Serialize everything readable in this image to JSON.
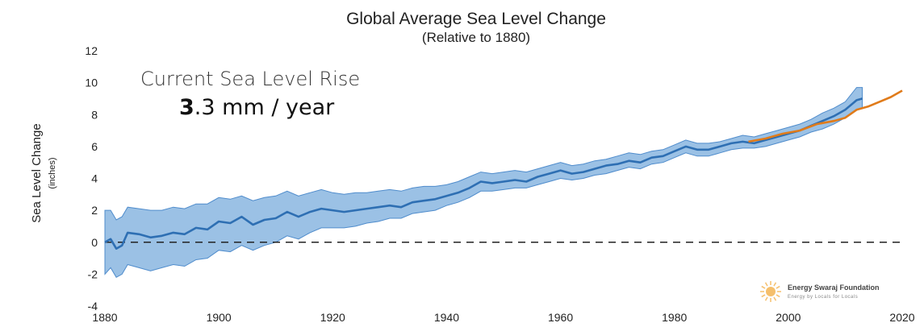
{
  "chart_data": {
    "type": "line",
    "title": "Global Average Sea Level Change",
    "subtitle": "(Relative to 1880)",
    "ylabel": "Sea Level Change",
    "ylabel_unit": "(inches)",
    "xlabel": "",
    "xlim": [
      1880,
      2020
    ],
    "ylim": [
      -4,
      12
    ],
    "x_ticks": [
      "1880",
      "1900",
      "1920",
      "1940",
      "1960",
      "1980",
      "2000",
      "2020"
    ],
    "y_ticks": [
      "12",
      "10",
      "8",
      "6",
      "4",
      "2",
      "0",
      "-2",
      "-4"
    ],
    "reference_line": {
      "y": 0,
      "style": "dashed"
    },
    "annotation": {
      "line1": "Current Sea Level Rise",
      "value_bold": "3",
      "value_rest": ".3 mm / year"
    },
    "series": [
      {
        "color": "#2e6fb3",
        "band_color": "#8ab6e0",
        "x": [
          1880,
          1881,
          1882,
          1883,
          1884,
          1886,
          1888,
          1890,
          1892,
          1894,
          1896,
          1898,
          1900,
          1902,
          1904,
          1906,
          1908,
          1910,
          1912,
          1914,
          1916,
          1918,
          1920,
          1922,
          1924,
          1926,
          1928,
          1930,
          1932,
          1934,
          1936,
          1938,
          1940,
          1942,
          1944,
          1946,
          1948,
          1950,
          1952,
          1954,
          1956,
          1958,
          1960,
          1962,
          1964,
          1966,
          1968,
          1970,
          1972,
          1974,
          1976,
          1978,
          1980,
          1982,
          1984,
          1986,
          1988,
          1990,
          1992,
          1994,
          1996,
          1998,
          2000,
          2002,
          2004,
          2006,
          2008,
          2010,
          2012,
          2013
        ],
        "values": [
          0,
          0.2,
          -0.4,
          -0.2,
          0.6,
          0.5,
          0.3,
          0.4,
          0.6,
          0.5,
          0.9,
          0.8,
          1.3,
          1.2,
          1.6,
          1.1,
          1.4,
          1.5,
          1.9,
          1.6,
          1.9,
          2.1,
          2.0,
          1.9,
          2.0,
          2.1,
          2.2,
          2.3,
          2.2,
          2.5,
          2.6,
          2.7,
          2.9,
          3.1,
          3.4,
          3.8,
          3.7,
          3.8,
          3.9,
          3.8,
          4.1,
          4.3,
          4.5,
          4.3,
          4.4,
          4.6,
          4.8,
          4.9,
          5.1,
          5.0,
          5.3,
          5.4,
          5.7,
          6.0,
          5.8,
          5.8,
          6.0,
          6.2,
          6.3,
          6.2,
          6.4,
          6.6,
          6.8,
          7.0,
          7.3,
          7.6,
          7.9,
          8.3,
          8.9,
          9.0
        ],
        "lower": [
          -2,
          -1.6,
          -2.2,
          -2.0,
          -1.4,
          -1.6,
          -1.8,
          -1.6,
          -1.4,
          -1.5,
          -1.1,
          -1.0,
          -0.5,
          -0.6,
          -0.2,
          -0.5,
          -0.2,
          0.0,
          0.4,
          0.2,
          0.6,
          0.9,
          0.9,
          0.9,
          1.0,
          1.2,
          1.3,
          1.5,
          1.5,
          1.8,
          1.9,
          2.0,
          2.3,
          2.5,
          2.8,
          3.2,
          3.2,
          3.3,
          3.4,
          3.4,
          3.6,
          3.8,
          4.0,
          3.9,
          4.0,
          4.2,
          4.3,
          4.5,
          4.7,
          4.6,
          4.9,
          5.0,
          5.3,
          5.6,
          5.4,
          5.4,
          5.6,
          5.8,
          5.9,
          5.9,
          6.0,
          6.2,
          6.4,
          6.6,
          6.9,
          7.1,
          7.4,
          7.8,
          8.3,
          8.4
        ],
        "upper": [
          2,
          2.0,
          1.4,
          1.6,
          2.2,
          2.1,
          2.0,
          2.0,
          2.2,
          2.1,
          2.4,
          2.4,
          2.8,
          2.7,
          2.9,
          2.6,
          2.8,
          2.9,
          3.2,
          2.9,
          3.1,
          3.3,
          3.1,
          3.0,
          3.1,
          3.1,
          3.2,
          3.3,
          3.2,
          3.4,
          3.5,
          3.5,
          3.6,
          3.8,
          4.1,
          4.4,
          4.3,
          4.4,
          4.5,
          4.4,
          4.6,
          4.8,
          5.0,
          4.8,
          4.9,
          5.1,
          5.2,
          5.4,
          5.6,
          5.5,
          5.7,
          5.8,
          6.1,
          6.4,
          6.2,
          6.2,
          6.3,
          6.5,
          6.7,
          6.6,
          6.8,
          7.0,
          7.2,
          7.4,
          7.7,
          8.1,
          8.4,
          8.8,
          9.7,
          9.7
        ]
      },
      {
        "color": "#e07b1a",
        "x": [
          1993,
          1996,
          1999,
          2002,
          2005,
          2008,
          2010,
          2012,
          2014,
          2016,
          2018,
          2020
        ],
        "values": [
          6.3,
          6.5,
          6.8,
          7.0,
          7.4,
          7.6,
          7.8,
          8.3,
          8.5,
          8.8,
          9.1,
          9.5
        ]
      }
    ]
  },
  "logo": {
    "name": "Energy Swaraj Foundation",
    "tagline": "Energy by Locals for Locals",
    "color": "#f2a93b"
  }
}
